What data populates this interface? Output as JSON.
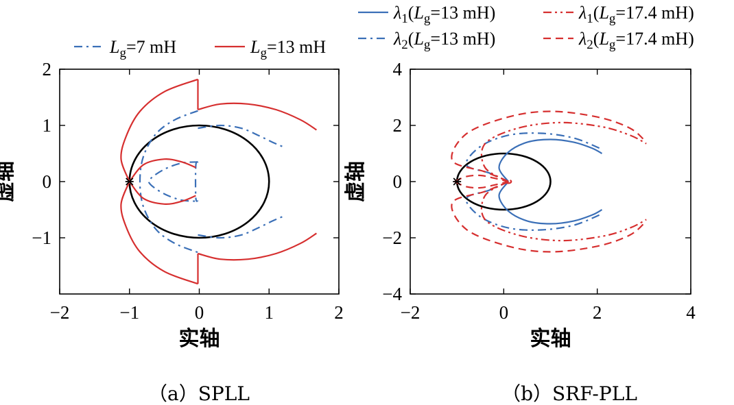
{
  "chart_data": [
    {
      "type": "line",
      "caption": "（a）SPLL",
      "xlabel": "实轴",
      "ylabel": "虚轴",
      "xlim": [
        -2,
        2
      ],
      "ylim": [
        -2,
        2
      ],
      "xticks": [
        -2,
        -1,
        0,
        1,
        2
      ],
      "yticks": [
        -1,
        0,
        1,
        2
      ],
      "xtick_labels": [
        "−2",
        "−1",
        "0",
        "1",
        "2"
      ],
      "ytick_labels": [
        "−1",
        "0",
        "1",
        "2"
      ],
      "critical_point": [
        -1,
        0
      ],
      "legend": [
        {
          "name": "Lg=7 mH",
          "sym": "L",
          "sub": "g",
          "rest": "=7 mH",
          "color": "#3a6fb7",
          "dash": "dashdot"
        },
        {
          "name": "Lg=13 mH",
          "sym": "L",
          "sub": "g",
          "rest": "=13 mH",
          "color": "#d62f2f",
          "dash": "solid"
        }
      ],
      "series": [
        {
          "name": "unit circle",
          "color": "#000000",
          "dash": "solid",
          "curves": [
            {
              "center": [
                0,
                0
              ],
              "radius": 1
            }
          ]
        },
        {
          "name": "Lg=7 mH",
          "color": "#3a6fb7",
          "dash": "dashdot",
          "curves": [
            {
              "points": [
                [
                  -0.02,
                  1.26
                ],
                [
                  -0.35,
                  1.1
                ],
                [
                  -0.62,
                  0.85
                ],
                [
                  -0.8,
                  0.45
                ],
                [
                  -0.85,
                  0
                ],
                [
                  -0.8,
                  -0.45
                ],
                [
                  -0.62,
                  -0.85
                ],
                [
                  -0.35,
                  -1.1
                ],
                [
                  -0.02,
                  -1.26
                ]
              ]
            },
            {
              "points": [
                [
                  -0.02,
                  0.95
                ],
                [
                  0.3,
                  1.0
                ],
                [
                  0.6,
                  0.95
                ],
                [
                  0.85,
                  0.82
                ],
                [
                  1.05,
                  0.7
                ],
                [
                  1.2,
                  0.62
                ]
              ]
            },
            {
              "points": [
                [
                  -0.02,
                  -0.95
                ],
                [
                  0.3,
                  -1.0
                ],
                [
                  0.6,
                  -0.95
                ],
                [
                  0.85,
                  -0.82
                ],
                [
                  1.05,
                  -0.7
                ],
                [
                  1.2,
                  -0.62
                ]
              ]
            },
            {
              "points": [
                [
                  -0.02,
                  0.35
                ],
                [
                  -0.25,
                  0.33
                ],
                [
                  -0.5,
                  0.22
                ],
                [
                  -0.7,
                  0.05
                ],
                [
                  -0.7,
                  -0.05
                ],
                [
                  -0.5,
                  -0.22
                ],
                [
                  -0.25,
                  -0.33
                ],
                [
                  -0.02,
                  -0.35
                ]
              ]
            },
            {
              "points": [
                [
                  -0.02,
                  0.35
                ],
                [
                  -0.05,
                  0.28
                ],
                [
                  -0.05,
                  -0.28
                ],
                [
                  -0.02,
                  -0.35
                ]
              ]
            }
          ]
        },
        {
          "name": "Lg=13 mH",
          "color": "#d62f2f",
          "dash": "solid",
          "curves": [
            {
              "points": [
                [
                  -0.02,
                  1.82
                ],
                [
                  -0.5,
                  1.6
                ],
                [
                  -0.85,
                  1.25
                ],
                [
                  -1.05,
                  0.8
                ],
                [
                  -1.12,
                  0.4
                ],
                [
                  -1.0,
                  0
                ]
              ]
            },
            {
              "points": [
                [
                  -0.02,
                  -1.82
                ],
                [
                  -0.5,
                  -1.6
                ],
                [
                  -0.85,
                  -1.25
                ],
                [
                  -1.05,
                  -0.8
                ],
                [
                  -1.12,
                  -0.4
                ],
                [
                  -1.0,
                  0
                ]
              ]
            },
            {
              "points": [
                [
                  -0.02,
                  1.82
                ],
                [
                  -0.02,
                  1.28
                ]
              ]
            },
            {
              "points": [
                [
                  -0.02,
                  -1.82
                ],
                [
                  -0.02,
                  -1.28
                ]
              ]
            },
            {
              "points": [
                [
                  -0.02,
                  1.28
                ],
                [
                  0.3,
                  1.38
                ],
                [
                  0.7,
                  1.38
                ],
                [
                  1.1,
                  1.28
                ],
                [
                  1.45,
                  1.1
                ],
                [
                  1.68,
                  0.92
                ]
              ]
            },
            {
              "points": [
                [
                  -0.02,
                  -1.28
                ],
                [
                  0.3,
                  -1.38
                ],
                [
                  0.7,
                  -1.38
                ],
                [
                  1.1,
                  -1.28
                ],
                [
                  1.45,
                  -1.1
                ],
                [
                  1.68,
                  -0.92
                ]
              ]
            },
            {
              "points": [
                [
                  -1.0,
                  0
                ],
                [
                  -0.8,
                  0.3
                ],
                [
                  -0.5,
                  0.4
                ],
                [
                  -0.25,
                  0.35
                ],
                [
                  -0.05,
                  0.25
                ]
              ]
            },
            {
              "points": [
                [
                  -1.0,
                  0
                ],
                [
                  -0.8,
                  -0.3
                ],
                [
                  -0.5,
                  -0.4
                ],
                [
                  -0.25,
                  -0.35
                ],
                [
                  -0.05,
                  -0.25
                ]
              ]
            }
          ]
        }
      ]
    },
    {
      "type": "line",
      "caption": "（b）SRF-PLL",
      "xlabel": "实轴",
      "ylabel": "虚轴",
      "xlim": [
        -2,
        4
      ],
      "ylim": [
        -4,
        4
      ],
      "xticks": [
        -2,
        0,
        2,
        4
      ],
      "yticks": [
        -4,
        -2,
        0,
        2,
        4
      ],
      "xtick_labels": [
        "−2",
        "0",
        "2",
        "4"
      ],
      "ytick_labels": [
        "−4",
        "−2",
        "0",
        "2",
        "4"
      ],
      "critical_point": [
        -1,
        0
      ],
      "legend": [
        {
          "name": "λ1(Lg=13 mH)",
          "lam": "λ",
          "lsub": "1",
          "sym": "L",
          "sub": "g",
          "rest": "=13 mH)",
          "color": "#3a6fb7",
          "dash": "solid"
        },
        {
          "name": "λ1(Lg=17.4 mH)",
          "lam": "λ",
          "lsub": "1",
          "sym": "L",
          "sub": "g",
          "rest": "=17.4 mH)",
          "color": "#d62f2f",
          "dash": "dashdotdot"
        },
        {
          "name": "λ2(Lg=13 mH)",
          "lam": "λ",
          "lsub": "2",
          "sym": "L",
          "sub": "g",
          "rest": "=13 mH)",
          "color": "#3a6fb7",
          "dash": "dashdot"
        },
        {
          "name": "λ2(Lg=17.4 mH)",
          "lam": "λ",
          "lsub": "2",
          "sym": "L",
          "sub": "g",
          "rest": "=17.4 mH)",
          "color": "#d62f2f",
          "dash": "dashed"
        }
      ],
      "series": [
        {
          "name": "unit circle",
          "color": "#000000",
          "dash": "solid",
          "curves": [
            {
              "center": [
                0,
                0
              ],
              "radius": 1
            }
          ]
        },
        {
          "name": "λ1(Lg=13 mH)",
          "color": "#3a6fb7",
          "dash": "solid",
          "curves": [
            {
              "points": [
                [
                  0.1,
                  0
                ],
                [
                  -0.1,
                  0.5
                ],
                [
                  0.1,
                  1.05
                ],
                [
                  0.5,
                  1.4
                ],
                [
                  1.0,
                  1.5
                ],
                [
                  1.5,
                  1.4
                ],
                [
                  1.9,
                  1.18
                ],
                [
                  2.1,
                  1.0
                ]
              ]
            },
            {
              "points": [
                [
                  0.1,
                  0
                ],
                [
                  -0.1,
                  -0.5
                ],
                [
                  0.1,
                  -1.05
                ],
                [
                  0.5,
                  -1.4
                ],
                [
                  1.0,
                  -1.5
                ],
                [
                  1.5,
                  -1.4
                ],
                [
                  1.9,
                  -1.18
                ],
                [
                  2.1,
                  -1.0
                ]
              ]
            }
          ]
        },
        {
          "name": "λ2(Lg=13 mH)",
          "color": "#3a6fb7",
          "dash": "dashdot",
          "curves": [
            {
              "points": [
                [
                  0.1,
                  0
                ],
                [
                  -0.3,
                  0.3
                ],
                [
                  -0.8,
                  0.6
                ],
                [
                  -0.5,
                  1.25
                ],
                [
                  0.1,
                  1.65
                ],
                [
                  0.8,
                  1.72
                ],
                [
                  1.5,
                  1.55
                ],
                [
                  2.1,
                  1.15
                ]
              ]
            },
            {
              "points": [
                [
                  0.1,
                  0
                ],
                [
                  -0.3,
                  -0.3
                ],
                [
                  -0.8,
                  -0.6
                ],
                [
                  -0.5,
                  -1.25
                ],
                [
                  0.1,
                  -1.65
                ],
                [
                  0.8,
                  -1.72
                ],
                [
                  1.5,
                  -1.55
                ],
                [
                  2.1,
                  -1.15
                ]
              ]
            }
          ]
        },
        {
          "name": "λ1(Lg=17.4 mH)",
          "color": "#d62f2f",
          "dash": "dashdotdot",
          "curves": [
            {
              "points": [
                [
                  0.1,
                  0
                ],
                [
                  -0.4,
                  0.5
                ],
                [
                  -0.4,
                  1.35
                ],
                [
                  0.3,
                  1.9
                ],
                [
                  1.2,
                  2.1
                ],
                [
                  2.1,
                  1.95
                ],
                [
                  2.7,
                  1.65
                ],
                [
                  3.05,
                  1.35
                ]
              ]
            },
            {
              "points": [
                [
                  0.1,
                  0
                ],
                [
                  -0.4,
                  -0.5
                ],
                [
                  -0.4,
                  -1.35
                ],
                [
                  0.3,
                  -1.9
                ],
                [
                  1.2,
                  -2.1
                ],
                [
                  2.1,
                  -1.95
                ],
                [
                  2.7,
                  -1.65
                ],
                [
                  3.05,
                  -1.35
                ]
              ]
            }
          ]
        },
        {
          "name": "λ2(Lg=17.4 mH)",
          "color": "#d62f2f",
          "dash": "dashed",
          "curves": [
            {
              "points": [
                [
                  0.1,
                  0
                ],
                [
                  -0.4,
                  0.35
                ],
                [
                  -1.1,
                  0.75
                ],
                [
                  -0.8,
                  1.7
                ],
                [
                  0.1,
                  2.3
                ],
                [
                  1.0,
                  2.5
                ],
                [
                  2.0,
                  2.3
                ],
                [
                  2.7,
                  1.9
                ],
                [
                  3.05,
                  1.4
                ]
              ]
            },
            {
              "points": [
                [
                  0.1,
                  0
                ],
                [
                  -0.4,
                  -0.35
                ],
                [
                  -1.1,
                  -0.75
                ],
                [
                  -0.8,
                  -1.7
                ],
                [
                  0.1,
                  -2.3
                ],
                [
                  1.0,
                  -2.5
                ],
                [
                  2.0,
                  -2.3
                ],
                [
                  2.7,
                  -1.9
                ],
                [
                  3.05,
                  -1.4
                ]
              ]
            },
            {
              "points": [
                [
                  -1.05,
                  0
                ],
                [
                  -0.8,
                  0.18
                ],
                [
                  -0.5,
                  0.22
                ],
                [
                  -0.2,
                  0.12
                ],
                [
                  0.1,
                  0
                ]
              ]
            },
            {
              "points": [
                [
                  -1.05,
                  0
                ],
                [
                  -0.8,
                  -0.18
                ],
                [
                  -0.5,
                  -0.22
                ],
                [
                  -0.2,
                  -0.12
                ],
                [
                  0.1,
                  0
                ]
              ]
            },
            {
              "center": [
                0.1,
                0
              ],
              "radius": 0.06
            }
          ]
        }
      ]
    }
  ]
}
